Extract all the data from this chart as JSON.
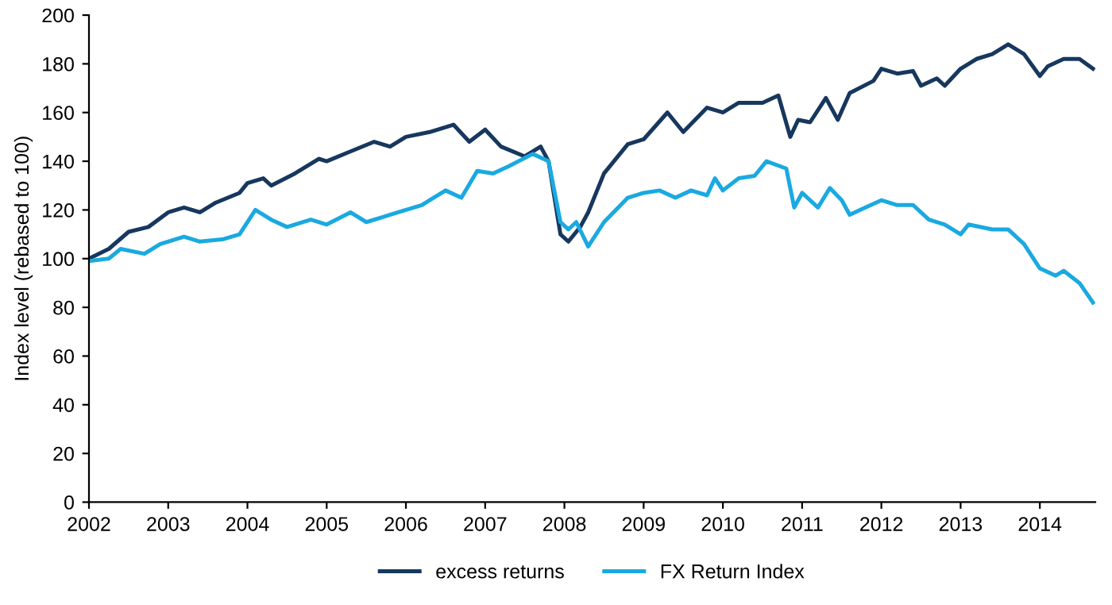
{
  "chart_data": {
    "type": "line",
    "ylabel": "Index level (rebased to 100)",
    "xlim": [
      2002,
      2014.7
    ],
    "xticks": [
      2002,
      2003,
      2004,
      2005,
      2006,
      2007,
      2008,
      2009,
      2010,
      2011,
      2012,
      2013,
      2014
    ],
    "ylim": [
      0,
      200
    ],
    "yticks": [
      0,
      20,
      40,
      60,
      80,
      100,
      120,
      140,
      160,
      180,
      200
    ],
    "grid": false,
    "legend": "bottom",
    "marker": "none",
    "line_style": "solid",
    "series": [
      {
        "name": "excess returns",
        "color": "#17375e",
        "x": [
          2002.0,
          2002.25,
          2002.5,
          2002.75,
          2003.0,
          2003.2,
          2003.4,
          2003.6,
          2003.9,
          2004.0,
          2004.2,
          2004.3,
          2004.6,
          2004.9,
          2005.0,
          2005.3,
          2005.6,
          2005.8,
          2006.0,
          2006.3,
          2006.6,
          2006.8,
          2007.0,
          2007.2,
          2007.5,
          2007.7,
          2007.8,
          2007.95,
          2008.05,
          2008.2,
          2008.3,
          2008.5,
          2008.8,
          2009.0,
          2009.3,
          2009.5,
          2009.8,
          2010.0,
          2010.2,
          2010.5,
          2010.7,
          2010.85,
          2010.95,
          2011.1,
          2011.3,
          2011.45,
          2011.6,
          2011.9,
          2012.0,
          2012.2,
          2012.4,
          2012.5,
          2012.7,
          2012.8,
          2013.0,
          2013.2,
          2013.4,
          2013.6,
          2013.8,
          2014.0,
          2014.1,
          2014.3,
          2014.5,
          2014.67
        ],
        "values": [
          100,
          104,
          111,
          113,
          119,
          121,
          119,
          123,
          127,
          131,
          133,
          130,
          135,
          141,
          140,
          144,
          148,
          146,
          150,
          152,
          155,
          148,
          153,
          146,
          142,
          146,
          140,
          110,
          107,
          113,
          119,
          135,
          147,
          149,
          160,
          152,
          162,
          160,
          164,
          164,
          167,
          150,
          157,
          156,
          166,
          157,
          168,
          173,
          178,
          176,
          177,
          171,
          174,
          171,
          178,
          182,
          184,
          188,
          184,
          175,
          179,
          182,
          182,
          178
        ]
      },
      {
        "name": "FX Return Index",
        "color": "#1aa9e0",
        "x": [
          2002.0,
          2002.25,
          2002.4,
          2002.7,
          2002.9,
          2003.2,
          2003.4,
          2003.7,
          2003.9,
          2004.1,
          2004.3,
          2004.5,
          2004.8,
          2005.0,
          2005.3,
          2005.5,
          2005.7,
          2006.0,
          2006.2,
          2006.5,
          2006.7,
          2006.9,
          2007.1,
          2007.3,
          2007.6,
          2007.8,
          2007.95,
          2008.05,
          2008.15,
          2008.3,
          2008.5,
          2008.8,
          2009.0,
          2009.2,
          2009.4,
          2009.6,
          2009.8,
          2009.9,
          2010.0,
          2010.2,
          2010.4,
          2010.55,
          2010.8,
          2010.9,
          2011.0,
          2011.2,
          2011.35,
          2011.5,
          2011.6,
          2011.8,
          2012.0,
          2012.2,
          2012.4,
          2012.6,
          2012.8,
          2013.0,
          2013.1,
          2013.4,
          2013.6,
          2013.8,
          2014.0,
          2014.2,
          2014.3,
          2014.5,
          2014.67
        ],
        "values": [
          99,
          100,
          104,
          102,
          106,
          109,
          107,
          108,
          110,
          120,
          116,
          113,
          116,
          114,
          119,
          115,
          117,
          120,
          122,
          128,
          125,
          136,
          135,
          138,
          143,
          140,
          115,
          112,
          115,
          105,
          115,
          125,
          127,
          128,
          125,
          128,
          126,
          133,
          128,
          133,
          134,
          140,
          137,
          121,
          127,
          121,
          129,
          124,
          118,
          121,
          124,
          122,
          122,
          116,
          114,
          110,
          114,
          112,
          112,
          106,
          96,
          93,
          95,
          90,
          82
        ]
      }
    ]
  }
}
